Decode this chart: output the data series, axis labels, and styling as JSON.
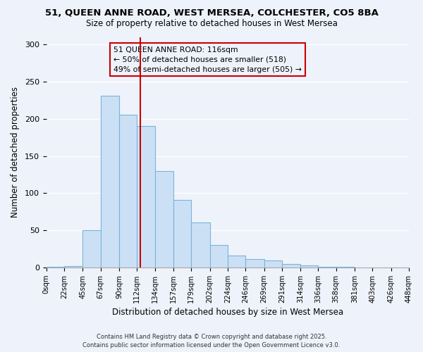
{
  "title": "51, QUEEN ANNE ROAD, WEST MERSEA, COLCHESTER, CO5 8BA",
  "subtitle": "Size of property relative to detached houses in West Mersea",
  "xlabel": "Distribution of detached houses by size in West Mersea",
  "ylabel": "Number of detached properties",
  "bar_color": "#cce0f5",
  "bar_edge_color": "#7ab4d8",
  "background_color": "#eef2fb",
  "grid_color": "#ffffff",
  "bin_edges": [
    0,
    22,
    45,
    67,
    90,
    112,
    134,
    157,
    179,
    202,
    224,
    246,
    269,
    291,
    314,
    336,
    358,
    381,
    403,
    426,
    448
  ],
  "bin_labels": [
    "0sqm",
    "22sqm",
    "45sqm",
    "67sqm",
    "90sqm",
    "112sqm",
    "134sqm",
    "157sqm",
    "179sqm",
    "202sqm",
    "224sqm",
    "246sqm",
    "269sqm",
    "291sqm",
    "314sqm",
    "336sqm",
    "358sqm",
    "381sqm",
    "403sqm",
    "426sqm",
    "448sqm"
  ],
  "bar_heights": [
    1,
    2,
    50,
    231,
    205,
    190,
    130,
    91,
    61,
    30,
    16,
    11,
    9,
    5,
    3,
    1,
    1,
    0,
    0,
    0
  ],
  "ylim": [
    0,
    310
  ],
  "yticks": [
    0,
    50,
    100,
    150,
    200,
    250,
    300
  ],
  "marker_value": 116,
  "marker_color": "#cc0000",
  "annotation_title": "51 QUEEN ANNE ROAD: 116sqm",
  "annotation_line1": "← 50% of detached houses are smaller (518)",
  "annotation_line2": "49% of semi-detached houses are larger (505) →",
  "footer1": "Contains HM Land Registry data © Crown copyright and database right 2025.",
  "footer2": "Contains public sector information licensed under the Open Government Licence v3.0."
}
